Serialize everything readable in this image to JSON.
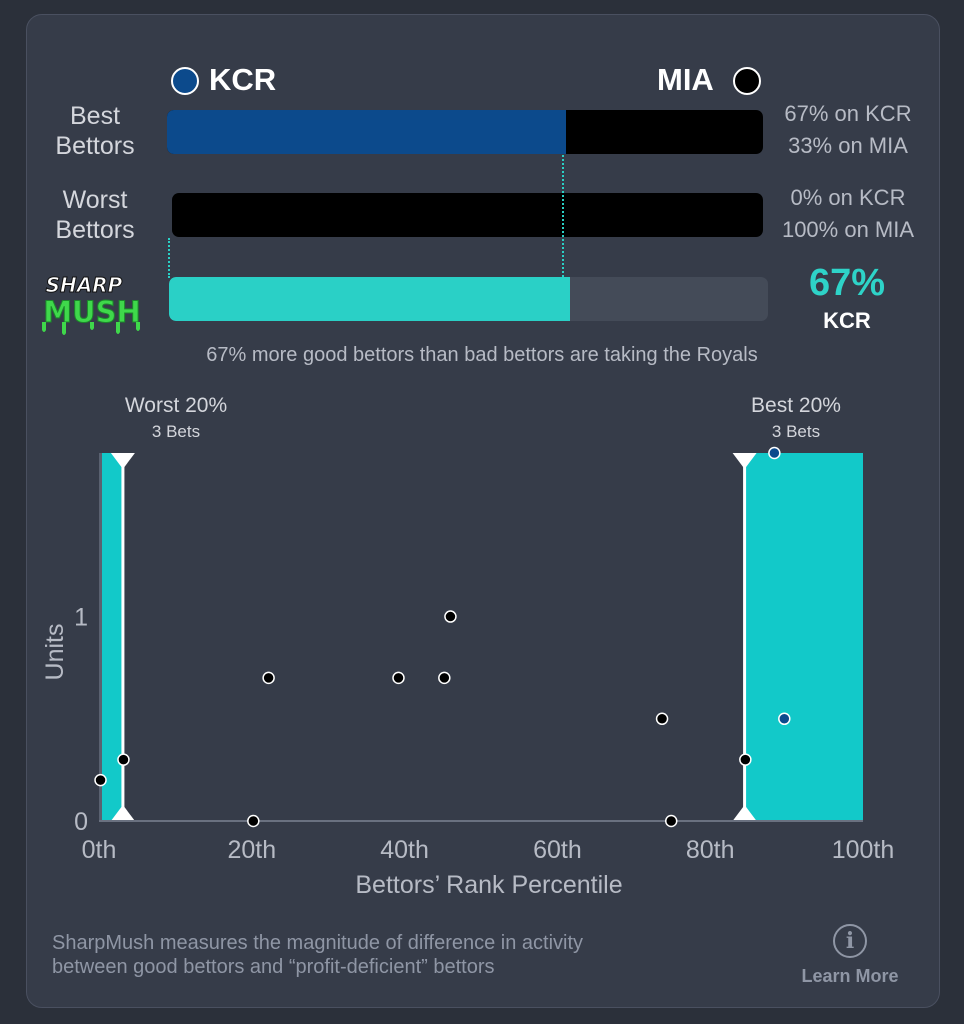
{
  "teams": {
    "left": {
      "name": "KCR",
      "color": "#0c4a8c"
    },
    "right": {
      "name": "MIA",
      "color": "#000000"
    }
  },
  "best_bettors": {
    "label_line1": "Best",
    "label_line2": "Bettors",
    "left_pct_text": "67% on KCR",
    "right_pct_text": "33% on MIA",
    "left_fraction": 0.67
  },
  "worst_bettors": {
    "label_line1": "Worst",
    "label_line2": "Bettors",
    "left_pct_text": "0% on KCR",
    "right_pct_text": "100% on MIA",
    "left_fraction": 0.0
  },
  "sharpmush": {
    "logo_line1": "SHARP",
    "logo_line2": "MUSH",
    "value_text": "67%",
    "team": "KCR",
    "fraction": 0.67,
    "summary": "67% more good bettors than bad bettors are taking the Royals"
  },
  "chart_data": {
    "type": "scatter",
    "xlabel": "Bettors’ Rank Percentile",
    "ylabel": "Units",
    "xlim": [
      0,
      100
    ],
    "ylim": [
      0,
      1.8
    ],
    "x_ticks": [
      "0th",
      "20th",
      "40th",
      "60th",
      "80th",
      "100th"
    ],
    "y_ticks": [
      "0",
      "1"
    ],
    "worst_label": "Worst 20%",
    "worst_bets": "3 Bets",
    "best_label": "Best 20%",
    "best_bets": "3 Bets",
    "worst_zone": [
      0,
      3
    ],
    "best_zone": [
      84.5,
      100
    ],
    "points": [
      {
        "x": 0.2,
        "y": 0.2,
        "team": "MIA"
      },
      {
        "x": 3.2,
        "y": 0.3,
        "team": "MIA"
      },
      {
        "x": 20.2,
        "y": 0.0,
        "team": "MIA"
      },
      {
        "x": 22.2,
        "y": 0.7,
        "team": "MIA"
      },
      {
        "x": 39.2,
        "y": 0.7,
        "team": "MIA"
      },
      {
        "x": 45.2,
        "y": 0.7,
        "team": "MIA"
      },
      {
        "x": 46.0,
        "y": 1.0,
        "team": "MIA"
      },
      {
        "x": 73.7,
        "y": 0.5,
        "team": "MIA"
      },
      {
        "x": 74.9,
        "y": 0.0,
        "team": "MIA"
      },
      {
        "x": 84.6,
        "y": 0.3,
        "team": "MIA"
      },
      {
        "x": 88.4,
        "y": 1.8,
        "team": "KCR"
      },
      {
        "x": 89.7,
        "y": 0.5,
        "team": "KCR"
      }
    ]
  },
  "footer": {
    "line1": "SharpMush measures the magnitude of difference in activity",
    "line2": "between good bettors and “profit-deficient” bettors",
    "learn_more": "Learn More",
    "info_glyph": "i"
  }
}
